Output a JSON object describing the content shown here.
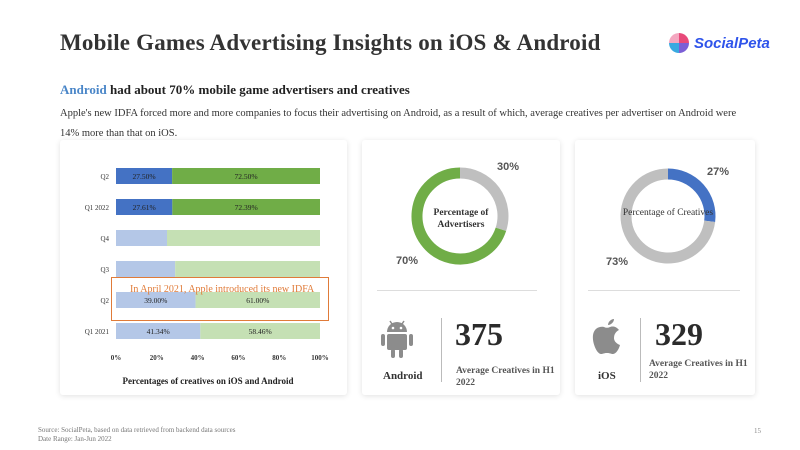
{
  "page": {
    "title": "Mobile Games Advertising Insights on iOS & Android",
    "logo_text": "SocialPeta",
    "subtitle_accent": "Android",
    "subtitle_rest": " had about 70% mobile game advertisers and creatives",
    "description": "Apple's new IDFA forced more and more companies to focus their advertising on Android, as a result of which, average creatives per advertiser on Android were 14% more than that on iOS.",
    "annotation": "In April 2021, Apple introduced its new IDFA",
    "footer_source": "Source: SocialPeta, based on data retrieved from backend data sources",
    "footer_range": "Date Range: Jan-Jun 2022",
    "page_number": "15"
  },
  "android_card": {
    "donut_label": "Percentage of Advertisers",
    "value": "375",
    "caption": "Average Creatives in H1 2022",
    "platform": "Android",
    "icon": "android-robot-icon"
  },
  "ios_card": {
    "donut_label": "Percentage of Creatives",
    "value": "329",
    "caption": "Average Creatives in H1 2022",
    "platform": "iOS",
    "icon": "apple-icon"
  },
  "colors": {
    "ios_blue": "#4472c4",
    "android_green": "#70ad47",
    "ios_blue_light": "#b4c7e7",
    "android_green_light": "#c5e0b4",
    "donut_gray": "#bfbfbf",
    "annotation": "#e07b39"
  },
  "chart_data": [
    {
      "type": "bar",
      "orientation": "horizontal-stacked-100",
      "title": "Percentages of creatives on iOS and Android",
      "categories": [
        "Q2",
        "Q1 2022",
        "Q4",
        "Q3",
        "Q2",
        "Q1 2021"
      ],
      "series": [
        {
          "values": [
            27.5,
            27.61,
            25,
            29,
            39.0,
            41.34
          ],
          "labels": [
            "27.50%",
            "27.61%",
            "",
            "",
            "39.00%",
            "41.34%"
          ]
        },
        {
          "values": [
            72.5,
            72.39,
            75,
            71,
            61.0,
            58.46
          ],
          "labels": [
            "72.50%",
            "72.39%",
            "",
            "",
            "61.00%",
            "58.46%"
          ]
        }
      ],
      "highlighted": [
        true,
        true,
        false,
        false,
        false,
        false
      ],
      "xticks": [
        "0%",
        "20%",
        "40%",
        "60%",
        "80%",
        "100%"
      ],
      "xlim": [
        0,
        100
      ]
    },
    {
      "type": "pie",
      "subtype": "donut",
      "title": "Percentage of Advertisers",
      "slices": [
        {
          "value": 30,
          "label": "30%",
          "color": "#bfbfbf"
        },
        {
          "value": 70,
          "label": "70%",
          "color": "#70ad47"
        }
      ]
    },
    {
      "type": "pie",
      "subtype": "donut",
      "title": "Percentage of Creatives",
      "slices": [
        {
          "value": 27,
          "label": "27%",
          "color": "#4472c4"
        },
        {
          "value": 73,
          "label": "73%",
          "color": "#bfbfbf"
        }
      ]
    }
  ]
}
